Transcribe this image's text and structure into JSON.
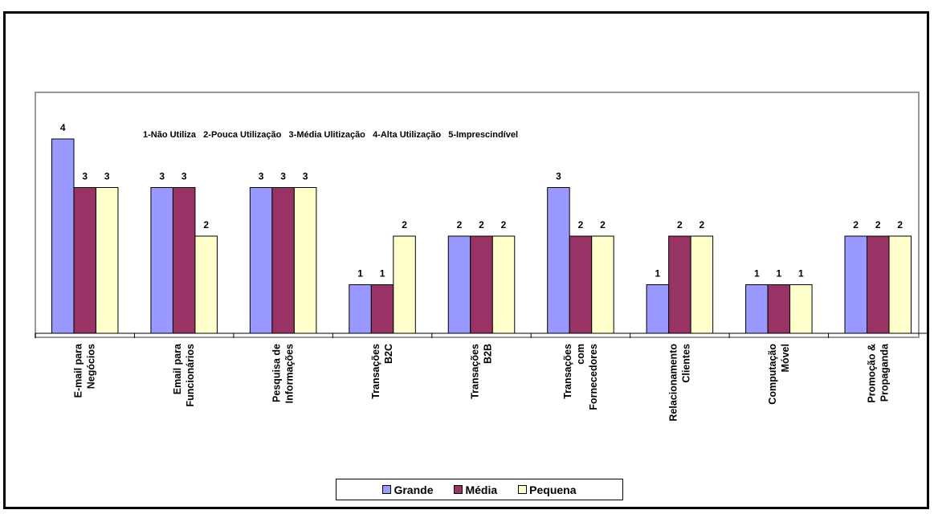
{
  "chart_data": {
    "type": "bar",
    "scale_note": "1-Não Utiliza   2-Pouca Utilização   3-Média Ulitização   4-Alta Utilização   5-Imprescindível",
    "categories": [
      [
        "E-mail para",
        "Negócios"
      ],
      [
        "Email para",
        "Funcionários"
      ],
      [
        "Pesquisa de",
        "Informações"
      ],
      [
        "Transações",
        "B2C"
      ],
      [
        "Transações",
        "B2B"
      ],
      [
        "Transações",
        "com",
        "Fornecedores"
      ],
      [
        "Relacionamento",
        "Clientes"
      ],
      [
        "Computação",
        "Móvel"
      ],
      [
        "Promoção &",
        "Propaganda"
      ]
    ],
    "series": [
      {
        "name": "Grande",
        "color": "#9999ff",
        "values": [
          4,
          3,
          3,
          1,
          2,
          3,
          1,
          1,
          2
        ]
      },
      {
        "name": "Média",
        "color": "#993366",
        "values": [
          3,
          3,
          3,
          1,
          2,
          2,
          2,
          1,
          2
        ]
      },
      {
        "name": "Pequena",
        "color": "#ffffcc",
        "values": [
          3,
          2,
          3,
          2,
          2,
          2,
          2,
          1,
          2
        ]
      }
    ],
    "ylim": [
      0,
      4
    ],
    "grid": false,
    "legend_position": "bottom"
  }
}
